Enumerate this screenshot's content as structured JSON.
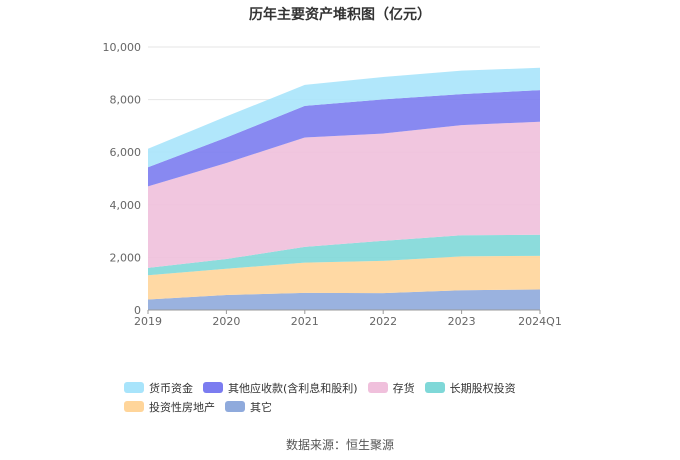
{
  "chart_data": {
    "type": "area",
    "stacked": true,
    "title": "历年主要资产堆积图（亿元）",
    "categories": [
      "2019",
      "2020",
      "2021",
      "2022",
      "2023",
      "2024Q1"
    ],
    "ylim": [
      0,
      10000
    ],
    "yticks": [
      0,
      2000,
      4000,
      6000,
      8000,
      10000
    ],
    "ytick_labels": [
      "0",
      "2,000",
      "4,000",
      "6,000",
      "8,000",
      "10,000"
    ],
    "xlabel": "",
    "ylabel": "",
    "grid": true,
    "legend_position": "bottom",
    "series": [
      {
        "name": "其它",
        "color": "#8faadc",
        "values": [
          400,
          570,
          650,
          640,
          750,
          780
        ]
      },
      {
        "name": "投资性房地产",
        "color": "#ffd59a",
        "values": [
          920,
          1000,
          1150,
          1230,
          1290,
          1280
        ]
      },
      {
        "name": "长期股权投资",
        "color": "#7fd8d8",
        "values": [
          280,
          370,
          600,
          760,
          800,
          800
        ]
      },
      {
        "name": "存货",
        "color": "#f0c0dc",
        "values": [
          3100,
          3650,
          4160,
          4080,
          4190,
          4300
        ]
      },
      {
        "name": "其他应收款(含利息和股利)",
        "color": "#7b7cf0",
        "values": [
          730,
          970,
          1200,
          1300,
          1180,
          1200
        ]
      },
      {
        "name": "货币资金",
        "color": "#a8e4fb",
        "values": [
          700,
          800,
          800,
          850,
          890,
          850
        ]
      }
    ],
    "legend_order": [
      "货币资金",
      "其他应收款(含利息和股利)",
      "存货",
      "长期股权投资",
      "投资性房地产",
      "其它"
    ]
  },
  "source": "数据来源：恒生聚源"
}
